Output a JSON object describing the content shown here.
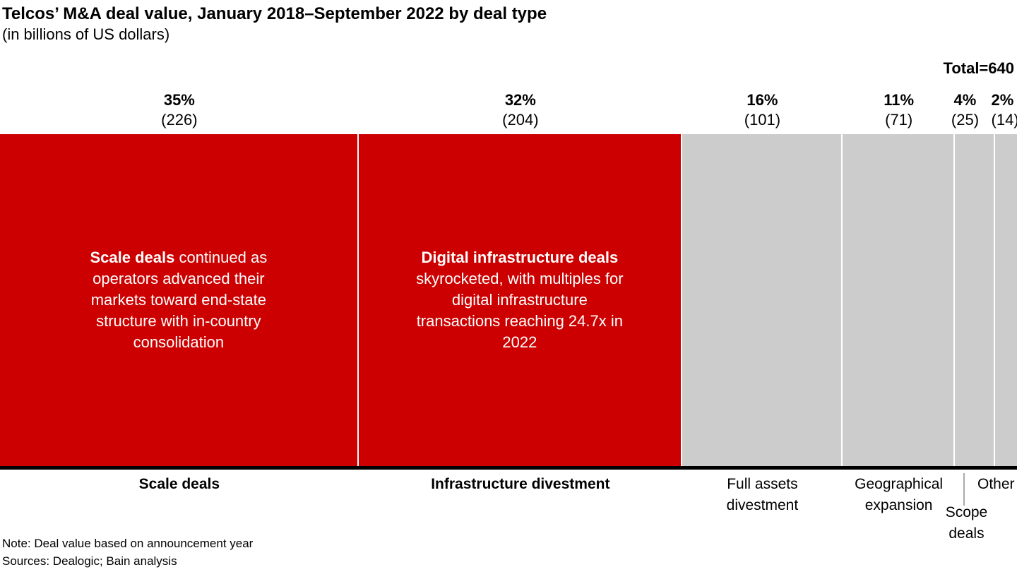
{
  "header": {
    "title": "Telcos’ M&A deal value, January 2018–September 2022 by deal type",
    "subtitle": "(in billions of US dollars)",
    "total_label": "Total=640"
  },
  "chart_data": {
    "type": "bar",
    "subtype": "100-percent-stacked-horizontal",
    "title": "Telcos’ M&A deal value, January 2018–September 2022 by deal type",
    "unit": "billions of US dollars",
    "total": 640,
    "grid": false,
    "legend_position": "none",
    "categories": [
      "Scale deals",
      "Infrastructure divestment",
      "Full assets divestment",
      "Geographical expansion",
      "Scope deals",
      "Other"
    ],
    "segments": [
      {
        "category": "Scale deals",
        "pct": 35,
        "pct_label": "35%",
        "value": 226,
        "value_label": "(226)",
        "color": "#cc0000",
        "annotation_bold": "Scale deals",
        "annotation_text": " continued as operators advanced their markets toward end-state structure with in-country consolidation"
      },
      {
        "category": "Infrastructure divestment",
        "pct": 32,
        "pct_label": "32%",
        "value": 204,
        "value_label": "(204)",
        "color": "#cc0000",
        "annotation_bold": "Digital infrastructure deals",
        "annotation_text": " skyrocketed, with multiples for digital infrastructure transactions reaching 24.7x in 2022"
      },
      {
        "category": "Full assets divestment",
        "pct": 16,
        "pct_label": "16%",
        "value": 101,
        "value_label": "(101)",
        "color": "#cccccc"
      },
      {
        "category": "Geographical expansion",
        "pct": 11,
        "pct_label": "11%",
        "value": 71,
        "value_label": "(71)",
        "color": "#cccccc"
      },
      {
        "category": "Scope deals",
        "pct": 4,
        "pct_label": "4%",
        "value": 25,
        "value_label": "(25)",
        "color": "#cccccc"
      },
      {
        "category": "Other",
        "pct": 2,
        "pct_label": "2%",
        "value": 14,
        "value_label": "(14)",
        "color": "#cccccc"
      }
    ]
  },
  "footer": {
    "note": "Note: Deal value based on announcement year",
    "sources": "Sources: Dealogic; Bain analysis"
  },
  "colors": {
    "accent_red": "#cc0000",
    "neutral_gray": "#cccccc",
    "axis_black": "#000000",
    "leader_line_gray": "#aaaaaa"
  }
}
